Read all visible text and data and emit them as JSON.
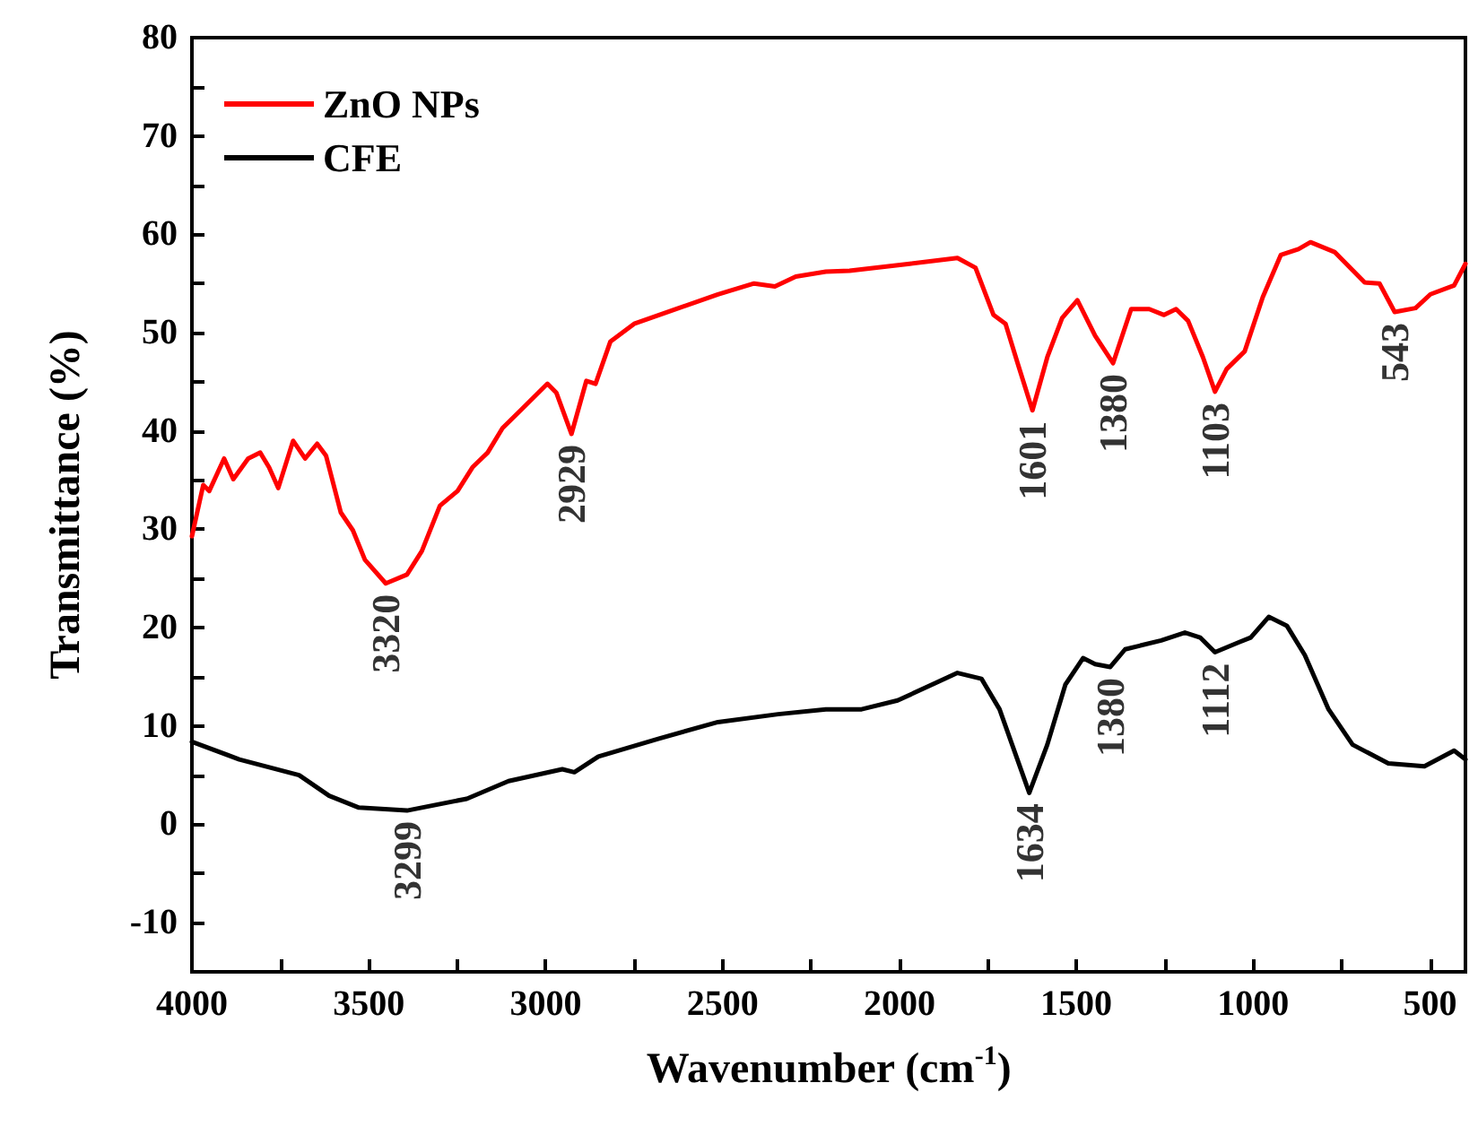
{
  "chart_data": {
    "type": "line",
    "xlabel": "Wavenumber (cm$^{-1}$)",
    "ylabel": "Transmittance (%)",
    "xlim": [
      4000,
      400
    ],
    "ylim": [
      -15,
      80
    ],
    "xticks": [
      4000,
      {
        "value": 3750,
        "label": null
      },
      3500,
      {
        "value": 3250,
        "label": null
      },
      3000,
      {
        "value": 2750,
        "label": null
      },
      2500,
      {
        "value": 2250,
        "label": null
      },
      2000,
      {
        "value": 1750,
        "label": null
      },
      1500,
      {
        "value": 1250,
        "label": null
      },
      1000,
      {
        "value": 750,
        "label": null
      },
      500
    ],
    "yticks": [
      -10,
      {
        "value": -5,
        "label": null
      },
      0,
      {
        "value": 5,
        "label": null
      },
      10,
      {
        "value": 15,
        "label": null
      },
      20,
      {
        "value": 25,
        "label": null
      },
      30,
      {
        "value": 35,
        "label": null
      },
      40,
      {
        "value": 45,
        "label": null
      },
      50,
      {
        "value": 55,
        "label": null
      },
      60,
      {
        "value": 65,
        "label": null
      },
      70,
      {
        "value": 75,
        "label": null
      },
      80
    ],
    "grid": false,
    "legend": "top left",
    "marker": "none",
    "line_style": "solid",
    "series": [
      {
        "name": "ZnO NPs",
        "color": "#ff0000",
        "x": [
          4000,
          3968,
          3951,
          3909,
          3883,
          3841,
          3807,
          3782,
          3756,
          3714,
          3680,
          3646,
          3621,
          3579,
          3545,
          3511,
          3452,
          3392,
          3350,
          3299,
          3249,
          3207,
          3164,
          3122,
          3071,
          2995,
          2970,
          2927,
          2885,
          2859,
          2817,
          2750,
          2631,
          2513,
          2411,
          2352,
          2293,
          2208,
          2141,
          1971,
          1836,
          1785,
          1734,
          1700,
          1666,
          1624,
          1582,
          1540,
          1497,
          1447,
          1396,
          1345,
          1294,
          1252,
          1218,
          1184,
          1142,
          1108,
          1075,
          1024,
          973,
          922,
          872,
          838,
          770,
          685,
          643,
          600,
          541,
          499,
          432,
          400
        ],
        "values": [
          29.3,
          34.5,
          33.9,
          37.2,
          35.1,
          37.2,
          37.8,
          36.3,
          34.2,
          39.0,
          37.2,
          38.7,
          37.5,
          31.7,
          29.9,
          26.9,
          24.5,
          25.4,
          27.8,
          32.4,
          33.9,
          36.3,
          37.8,
          40.3,
          42.1,
          44.8,
          43.9,
          39.7,
          45.1,
          44.8,
          49.1,
          50.9,
          52.4,
          53.9,
          55.0,
          54.7,
          55.7,
          56.2,
          56.3,
          57.0,
          57.6,
          56.6,
          51.8,
          50.9,
          46.9,
          42.1,
          47.5,
          51.5,
          53.3,
          49.7,
          46.9,
          52.4,
          52.4,
          51.8,
          52.4,
          51.2,
          47.5,
          44.0,
          46.3,
          48.1,
          53.6,
          57.9,
          58.5,
          59.2,
          58.2,
          55.1,
          55.0,
          52.1,
          52.5,
          53.9,
          54.8,
          57.0
        ]
      },
      {
        "name": "CFE",
        "color": "#000000",
        "x": [
          4000,
          3866,
          3697,
          3612,
          3528,
          3392,
          3223,
          3105,
          2953,
          2919,
          2851,
          2682,
          2513,
          2343,
          2208,
          2107,
          2005,
          1836,
          1768,
          1717,
          1633,
          1582,
          1531,
          1481,
          1447,
          1404,
          1362,
          1260,
          1193,
          1150,
          1108,
          1041,
          1007,
          956,
          905,
          854,
          787,
          719,
          618,
          516,
          432,
          400
        ],
        "values": [
          8.4,
          6.6,
          5.0,
          2.9,
          1.7,
          1.4,
          2.6,
          4.4,
          5.6,
          5.3,
          6.9,
          8.7,
          10.4,
          11.2,
          11.7,
          11.7,
          12.6,
          15.4,
          14.8,
          11.7,
          3.2,
          8.1,
          14.2,
          16.9,
          16.3,
          16.0,
          17.8,
          18.7,
          19.5,
          19.0,
          17.5,
          18.5,
          19.0,
          21.1,
          20.2,
          17.2,
          11.7,
          8.1,
          6.2,
          5.9,
          7.5,
          6.6
        ]
      }
    ],
    "annotations": [
      {
        "text": "3320",
        "x": 3452,
        "y": 24.5
      },
      {
        "text": "2929",
        "x": 2927,
        "y": 39.7
      },
      {
        "text": "1601",
        "x": 1624,
        "y": 42.1
      },
      {
        "text": "1380",
        "x": 1396,
        "y": 46.9
      },
      {
        "text": "1103",
        "x": 1108,
        "y": 44.0
      },
      {
        "text": "543",
        "x": 600,
        "y": 52.1
      },
      {
        "text": "3299",
        "x": 3392,
        "y": 1.4
      },
      {
        "text": "1634",
        "x": 1633,
        "y": 3.2
      },
      {
        "text": "1380",
        "x": 1404,
        "y": 16.0
      },
      {
        "text": "1112",
        "x": 1108,
        "y": 17.5
      }
    ]
  }
}
